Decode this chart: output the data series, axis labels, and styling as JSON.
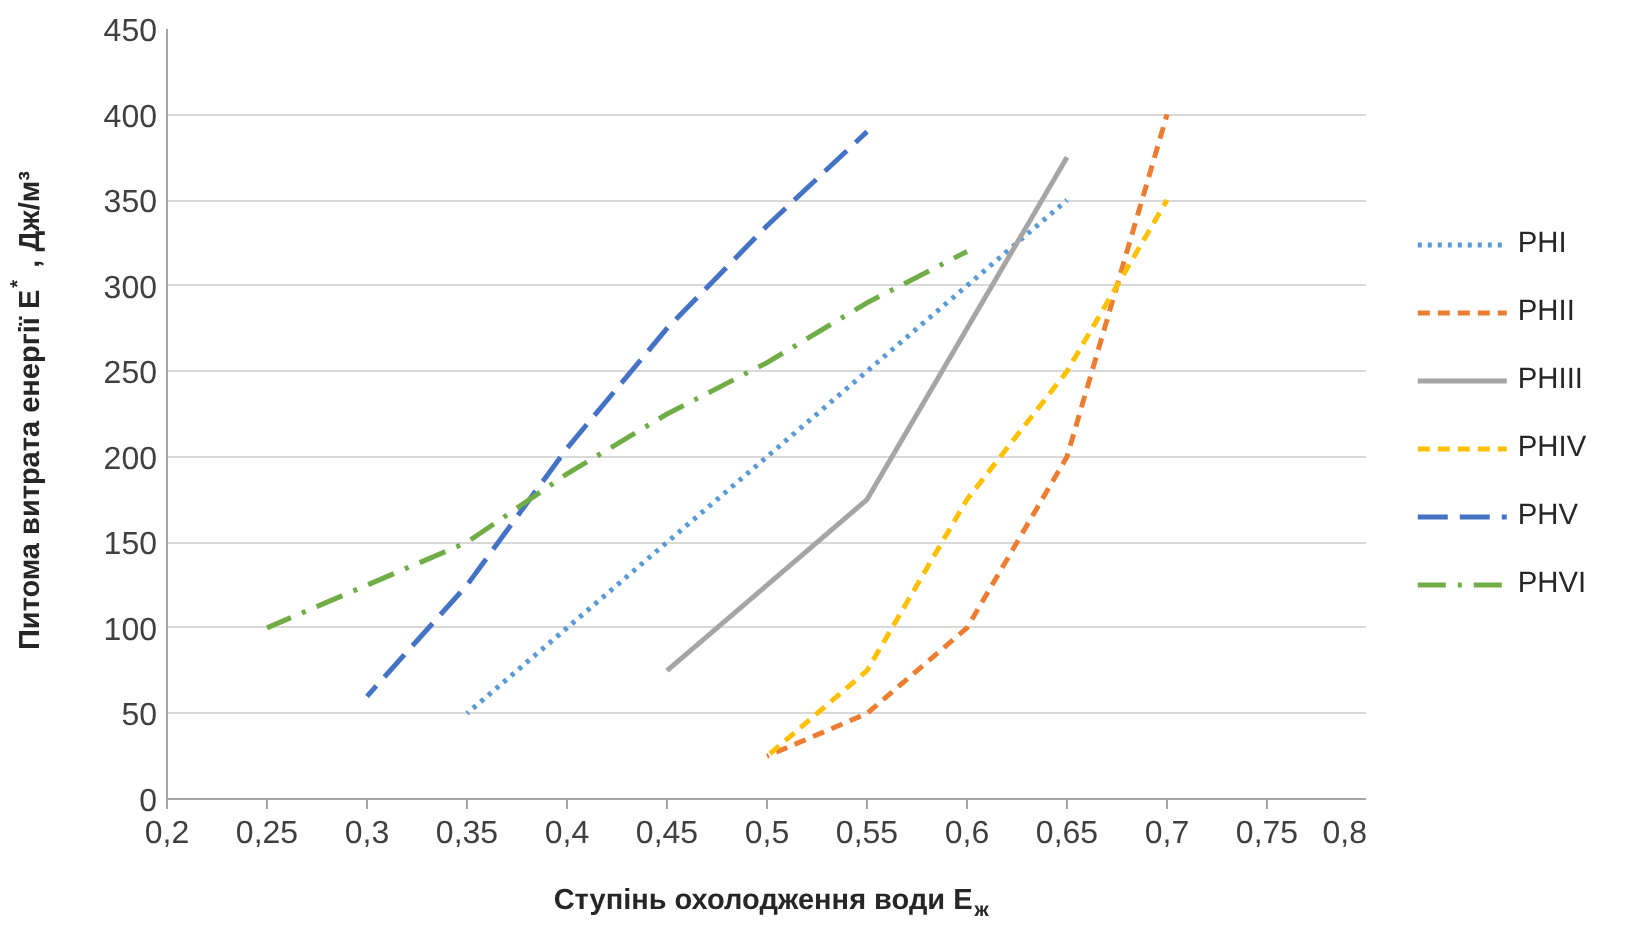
{
  "chart_data": {
    "type": "line",
    "xlabel": "Ступінь охолодження води E$_{ж}$",
    "ylabel": "Питома витрата енергії E$^{*}$ , Дж/м³",
    "xlim": [
      0.2,
      0.8
    ],
    "xticks": [
      {
        "value": 0.2,
        "label": "0,2"
      },
      {
        "value": 0.25,
        "label": "0,25"
      },
      {
        "value": 0.3,
        "label": "0,3"
      },
      {
        "value": 0.35,
        "label": "0,35"
      },
      {
        "value": 0.4,
        "label": "0,4"
      },
      {
        "value": 0.45,
        "label": "0,45"
      },
      {
        "value": 0.5,
        "label": "0,5"
      },
      {
        "value": 0.55,
        "label": "0,55"
      },
      {
        "value": 0.6,
        "label": "0,6"
      },
      {
        "value": 0.65,
        "label": "0,65"
      },
      {
        "value": 0.7,
        "label": "0,7"
      },
      {
        "value": 0.75,
        "label": "0,75"
      },
      {
        "value": 0.8,
        "label": "0,8"
      }
    ],
    "ylim": [
      0,
      450
    ],
    "yticks": [
      0,
      50,
      100,
      150,
      200,
      250,
      300,
      350,
      400,
      450
    ],
    "grid": "y",
    "legend": "right",
    "marker": "none",
    "series": [
      {
        "name": "PHI",
        "color": "#5b9bd5",
        "line_style": "dotted",
        "x": [
          0.35,
          0.4,
          0.45,
          0.5,
          0.55,
          0.6,
          0.65
        ],
        "values": [
          50,
          100,
          150,
          200,
          250,
          300,
          350
        ]
      },
      {
        "name": "PHII",
        "color": "#ed7d31",
        "line_style": "dashed",
        "x": [
          0.5,
          0.55,
          0.6,
          0.65,
          0.7
        ],
        "values": [
          25,
          50,
          100,
          200,
          400
        ]
      },
      {
        "name": "PHIII",
        "color": "#a5a5a5",
        "line_style": "solid",
        "x": [
          0.45,
          0.5,
          0.55,
          0.6,
          0.65
        ],
        "values": [
          75,
          125,
          175,
          275,
          375
        ]
      },
      {
        "name": "PHIV",
        "color": "#ffc000",
        "line_style": "dashed",
        "x": [
          0.5,
          0.55,
          0.6,
          0.65,
          0.7
        ],
        "values": [
          25,
          75,
          175,
          250,
          350
        ]
      },
      {
        "name": "PHV",
        "color": "#4472c4",
        "line_style": "longdash",
        "x": [
          0.3,
          0.35,
          0.4,
          0.45,
          0.5,
          0.55
        ],
        "values": [
          60,
          125,
          205,
          275,
          335,
          390
        ]
      },
      {
        "name": "PHVI",
        "color": "#70ad47",
        "line_style": "dashdot",
        "x": [
          0.25,
          0.3,
          0.35,
          0.4,
          0.45,
          0.5,
          0.55,
          0.6
        ],
        "values": [
          100,
          125,
          150,
          190,
          225,
          255,
          290,
          320
        ]
      }
    ]
  }
}
